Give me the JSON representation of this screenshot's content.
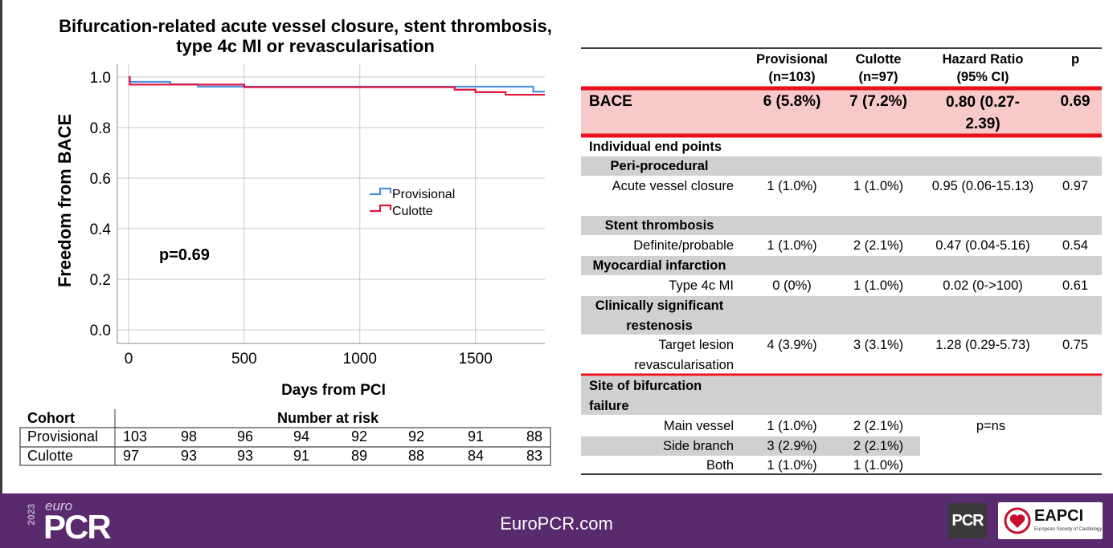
{
  "chart_data": {
    "type": "line",
    "title": "Bifurcation-related acute vessel closure, stent thrombosis, type 4c MI or revascularisation",
    "xlabel": "Days from PCI",
    "ylabel": "Freedom from BACE",
    "xlim": [
      0,
      1800
    ],
    "ylim": [
      0,
      1.0
    ],
    "x_ticks": [
      "0",
      "500",
      "1000",
      "1500"
    ],
    "y_ticks": [
      "0.0",
      "0.2",
      "0.4",
      "0.6",
      "0.8",
      "1.0"
    ],
    "annotation": "p=0.69",
    "legend_position": "center-right",
    "series": [
      {
        "name": "Provisional",
        "color": "#4a90e2",
        "steps": [
          [
            0,
            1.0
          ],
          [
            5,
            0.981
          ],
          [
            180,
            0.971
          ],
          [
            300,
            0.962
          ],
          [
            500,
            0.962
          ],
          [
            1410,
            0.962
          ],
          [
            1750,
            0.942
          ],
          [
            1800,
            0.942
          ]
        ]
      },
      {
        "name": "Culotte",
        "color": "#e0143c",
        "steps": [
          [
            0,
            1.0
          ],
          [
            5,
            0.97
          ],
          [
            500,
            0.96
          ],
          [
            1410,
            0.95
          ],
          [
            1500,
            0.94
          ],
          [
            1630,
            0.93
          ],
          [
            1800,
            0.93
          ]
        ]
      }
    ],
    "risk_table": {
      "cohort_label": "Cohort",
      "header": "Number at risk",
      "rows": [
        {
          "name": "Provisional",
          "values": [
            "103",
            "98",
            "96",
            "94",
            "92",
            "92",
            "91",
            "88"
          ]
        },
        {
          "name": "Culotte",
          "values": [
            "97",
            "93",
            "93",
            "91",
            "89",
            "88",
            "84",
            "83"
          ]
        }
      ]
    }
  },
  "table": {
    "headers": [
      "",
      "Provisional (n=103)",
      "Culotte (n=97)",
      "Hazard Ratio (95% CI)",
      "p"
    ],
    "bace": [
      "BACE",
      "6 (5.8%)",
      "7 (7.2%)",
      "0.80 (0.27-2.39)",
      "0.69"
    ],
    "individual_label": "Individual end points",
    "rows": [
      {
        "kind": "section",
        "label": "Peri-procedural"
      },
      {
        "kind": "data",
        "label": "Acute vessel closure",
        "prov": "1 (1.0%)",
        "cul": "1 (1.0%)",
        "hr": "0.95 (0.06-15.13)",
        "p": "0.97"
      },
      {
        "kind": "section",
        "label": "Stent thrombosis"
      },
      {
        "kind": "data",
        "label": "Definite/probable",
        "prov": "1 (1.0%)",
        "cul": "2 (2.1%)",
        "hr": "0.47 (0.04-5.16)",
        "p": "0.54"
      },
      {
        "kind": "section",
        "label": "Myocardial infarction"
      },
      {
        "kind": "data",
        "label": "Type 4c MI",
        "prov": "0 (0%)",
        "cul": "1 (1.0%)",
        "hr": "0.02 (0->100)",
        "p": "0.61"
      },
      {
        "kind": "section",
        "label": "Clinically significant restenosis"
      },
      {
        "kind": "data",
        "label": "Target lesion revascularisation",
        "prov": "4 (3.9%)",
        "cul": "3 (3.1%)",
        "hr": "1.28 (0.29-5.73)",
        "p": "0.75"
      }
    ],
    "site_label": "Site of bifurcation failure",
    "site_rows": [
      {
        "label": "Main vessel",
        "prov": "1 (1.0%)",
        "cul": "2 (2.1%)"
      },
      {
        "label": "Side branch",
        "prov": "3 (2.9%)",
        "cul": "2 (2.1%)"
      },
      {
        "label": "Both",
        "prov": "1 (1.0%)",
        "cul": "1 (1.0%)"
      }
    ],
    "site_p": "p=ns"
  },
  "footer": {
    "url": "EuroPCR.com",
    "logo_year": "2023",
    "logo_euro": "euro",
    "logo_pcr": "PCR",
    "badge": "PCR",
    "eapci": "EAPCI",
    "eapci_sub": "European Society of Cardiology"
  },
  "colors": {
    "footer_bg": "#5a2a6e",
    "highlight": "#f8c9c9",
    "red_rule": "#e8101a",
    "grey_band": "#d0d0d0"
  }
}
